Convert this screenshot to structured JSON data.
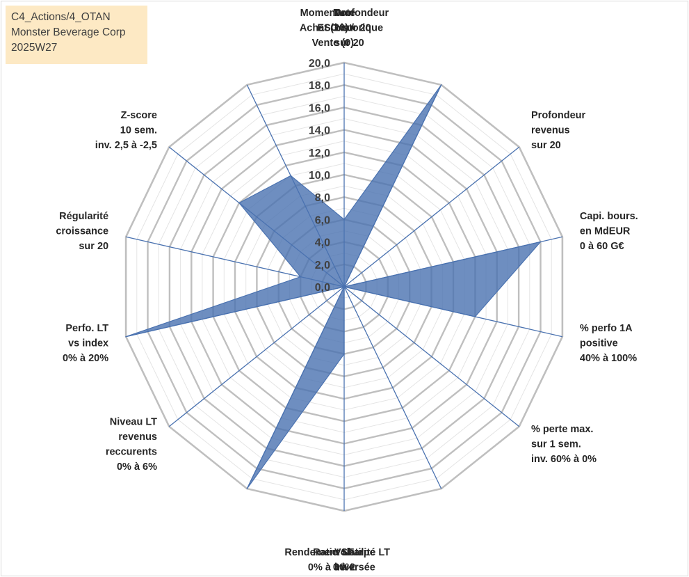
{
  "info_box": {
    "line1": "C4_Actions/4_OTAN",
    "line2": "Monster Beverage Corp",
    "line3": "2025W27"
  },
  "chart_data": {
    "type": "radar",
    "rmin": 0,
    "rmax": 20,
    "tick_step": 2,
    "tick_labels": [
      "0,0",
      "2,0",
      "4,0",
      "6,0",
      "8,0",
      "10,0",
      "12,0",
      "14,0",
      "16,0",
      "18,0",
      "20,0"
    ],
    "grid": true,
    "categories": [
      {
        "lines": [
          "Note",
          "ESG sur 20"
        ]
      },
      {
        "lines": [
          "Profondeur",
          "historique",
          "sur 20"
        ]
      },
      {
        "lines": [
          "Profondeur",
          "revenus",
          "sur 20"
        ]
      },
      {
        "lines": [
          "Capi. bours.",
          "en MdEUR",
          "0 à 60 G€"
        ]
      },
      {
        "lines": [
          "% perfo 1A",
          "positive",
          "40% à 100%"
        ]
      },
      {
        "lines": [
          "% perte max.",
          "sur 1 sem.",
          "inv. 60% à 0%"
        ]
      },
      {
        "lines": [
          "Volatilité LT",
          "inversée",
          "60% à 0%"
        ]
      },
      {
        "lines": [
          "Ratio Sharpe",
          "0 à 2"
        ]
      },
      {
        "lines": [
          "Rendement LT",
          "0% à 30%"
        ]
      },
      {
        "lines": [
          "Niveau LT",
          "revenus",
          "reccurents",
          "0% à 6%"
        ]
      },
      {
        "lines": [
          "Perfo. LT",
          "vs index",
          "0% à 20%"
        ]
      },
      {
        "lines": [
          "Régularité",
          "croissance",
          "sur 20"
        ]
      },
      {
        "lines": [
          "Z-score",
          "10 sem.",
          "inv. 2,5 à -2,5"
        ]
      },
      {
        "lines": [
          "Momentum",
          "Achat (20) /",
          "Vente (0)"
        ]
      }
    ],
    "series": [
      {
        "values": [
          6,
          20,
          0,
          18,
          12,
          0,
          0,
          6,
          20,
          0,
          20,
          4,
          12,
          11
        ],
        "fill": "#4a72b0",
        "stroke": "#4a72b0"
      }
    ],
    "colors": {
      "grid_major": "#bfbfbf",
      "grid_minor": "#e4e4e4",
      "spokes": "#4a72b0"
    }
  }
}
